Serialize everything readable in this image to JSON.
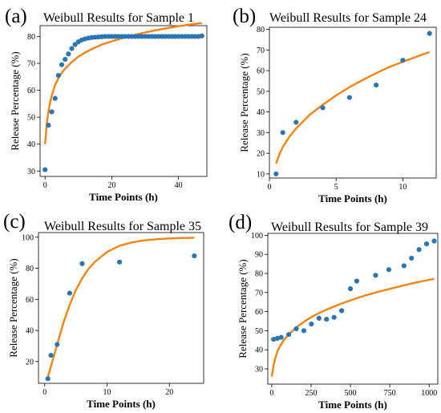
{
  "colors": {
    "points": "#2a75b3",
    "curve": "#f5830f"
  },
  "chart_data": [
    {
      "type": "scatter",
      "panel_label": "(a)",
      "title": "Weibull Results for Sample 1",
      "xlabel": "Time Points (h)",
      "ylabel": "Release Percentage (%)",
      "xlim": [
        -1.5,
        48.5
      ],
      "ylim": [
        28,
        84
      ],
      "xticks": [
        0,
        20,
        40
      ],
      "yticks": [
        30,
        40,
        50,
        60,
        70,
        80
      ],
      "series": [
        {
          "kind": "points",
          "x": [
            0,
            1,
            2,
            3,
            4,
            5,
            6,
            7,
            8,
            9,
            10,
            11,
            12,
            13,
            14,
            15,
            16,
            17,
            18,
            19,
            20,
            21,
            22,
            23,
            24,
            25,
            26,
            27,
            28,
            29,
            30,
            31,
            32,
            33,
            34,
            35,
            36,
            37,
            38,
            39,
            40,
            41,
            42,
            43,
            44,
            45,
            46,
            47
          ],
          "y": [
            30.5,
            47,
            52,
            57,
            65.5,
            69.5,
            71.5,
            73.5,
            75.5,
            77,
            78,
            78.7,
            79.1,
            79.4,
            79.6,
            79.7,
            79.8,
            79.9,
            80,
            80,
            80,
            80,
            80,
            80,
            80,
            80,
            80,
            80,
            80,
            80,
            80,
            80,
            80,
            80,
            80,
            80,
            80,
            80,
            80,
            80,
            80,
            80,
            80,
            80,
            80,
            80,
            80,
            80.2
          ]
        },
        {
          "kind": "curve",
          "x": [
            0,
            0.5,
            1,
            1.5,
            2,
            3,
            4,
            5,
            6,
            8,
            10,
            12,
            14,
            17,
            20,
            23,
            26,
            29,
            32,
            35,
            38,
            41,
            44,
            47
          ],
          "y": [
            40,
            47.5,
            52,
            55.5,
            58,
            62,
            64.5,
            66.5,
            68,
            70.5,
            72.5,
            74,
            75.3,
            77,
            78.2,
            79.3,
            80.3,
            81.2,
            82,
            82.7,
            83.4,
            84,
            84.5,
            85
          ]
        }
      ]
    },
    {
      "type": "scatter",
      "panel_label": "(b)",
      "title": "Weibull Results for Sample 24",
      "xlabel": "Time Points (h)",
      "ylabel": "Release Percentage (%)",
      "xlim": [
        0,
        12.5
      ],
      "ylim": [
        8,
        81
      ],
      "xticks": [
        0,
        5,
        10
      ],
      "yticks": [
        10,
        20,
        30,
        40,
        50,
        60,
        70,
        80
      ],
      "series": [
        {
          "kind": "points",
          "x": [
            0.5,
            1,
            2,
            4,
            6,
            8,
            10,
            12
          ],
          "y": [
            10,
            30,
            35,
            42,
            47,
            53,
            65,
            78
          ]
        },
        {
          "kind": "curve",
          "x": [
            0.5,
            0.75,
            1,
            1.5,
            2,
            3,
            4,
            5,
            6,
            7,
            8,
            9,
            10,
            11,
            12
          ],
          "y": [
            15,
            19.5,
            23,
            28,
            32,
            38.5,
            43.5,
            48,
            52,
            55.5,
            58.8,
            61.8,
            64.3,
            66.7,
            69
          ]
        }
      ]
    },
    {
      "type": "scatter",
      "panel_label": "(c)",
      "title": "Weibull Results for Sample 35",
      "xlabel": "Time Points (h)",
      "ylabel": "Release Percentage (%)",
      "xlim": [
        -1,
        25.5
      ],
      "ylim": [
        6,
        103
      ],
      "xticks": [
        0,
        10,
        20
      ],
      "yticks": [
        20,
        40,
        60,
        80,
        100
      ],
      "series": [
        {
          "kind": "points",
          "x": [
            0.5,
            1,
            2,
            4,
            6,
            12,
            24
          ],
          "y": [
            9,
            24,
            31,
            64,
            83,
            84,
            88
          ]
        },
        {
          "kind": "curve",
          "x": [
            0.5,
            1,
            2,
            3,
            4,
            5,
            6,
            7,
            8,
            10,
            12,
            14,
            16,
            18,
            20,
            22,
            24
          ],
          "y": [
            10,
            17,
            31,
            45,
            56.5,
            66,
            73.5,
            79.5,
            84,
            90.5,
            94.5,
            96.7,
            98,
            98.7,
            99.2,
            99.5,
            99.7
          ]
        }
      ]
    },
    {
      "type": "scatter",
      "panel_label": "(d)",
      "title": "Weibull Results for Sample 39",
      "xlabel": "Time Points (h)",
      "ylabel": "Release Percentage (%)",
      "xlim": [
        -25,
        1055
      ],
      "ylim": [
        22,
        101
      ],
      "xticks": [
        0,
        250,
        500,
        750,
        1000
      ],
      "yticks": [
        30,
        40,
        50,
        60,
        70,
        80,
        90,
        100
      ],
      "series": [
        {
          "kind": "points",
          "x": [
            12,
            36,
            60,
            108,
            156,
            204,
            252,
            300,
            348,
            396,
            444,
            500,
            540,
            660,
            744,
            840,
            888,
            936,
            984,
            1032
          ],
          "y": [
            45.5,
            46,
            46.5,
            48,
            51,
            50,
            53.5,
            56.5,
            56,
            57,
            60.5,
            72,
            76,
            79,
            82,
            84,
            88,
            92.5,
            95.5,
            97
          ]
        },
        {
          "kind": "curve",
          "x": [
            0,
            12,
            24,
            36,
            48,
            72,
            96,
            120,
            168,
            216,
            264,
            312,
            384,
            456,
            528,
            600,
            672,
            744,
            816,
            888,
            960,
            1032
          ],
          "y": [
            26,
            32,
            36,
            39,
            41.3,
            44.5,
            47,
            49,
            52.5,
            55.3,
            57.7,
            59.7,
            62.3,
            64.6,
            66.7,
            68.6,
            70.3,
            71.8,
            73.3,
            74.7,
            76,
            77.2
          ]
        }
      ]
    }
  ]
}
